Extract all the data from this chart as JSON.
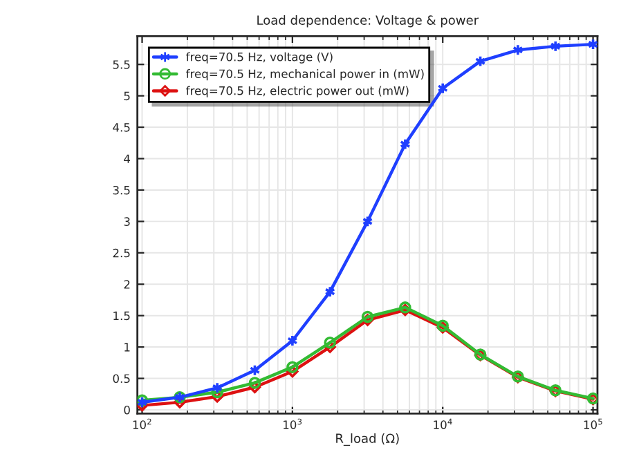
{
  "chart_data": {
    "type": "line",
    "title": "Load dependence: Voltage & power",
    "xlabel": "R_load (Ω)",
    "x": [
      100,
      178,
      316,
      562,
      1000,
      1778,
      3162,
      5623,
      10000,
      17783,
      31623,
      56234,
      100000
    ],
    "series": [
      {
        "name": "freq=70.5 Hz, voltage (V)",
        "color": "#1f3fff",
        "marker": "cross",
        "values": [
          0.12,
          0.2,
          0.35,
          0.63,
          1.1,
          1.88,
          3.0,
          4.23,
          5.12,
          5.55,
          5.73,
          5.79,
          5.82
        ]
      },
      {
        "name": "freq=70.5 Hz, mechanical power in (mW)",
        "color": "#33bb33",
        "marker": "circle",
        "values": [
          0.15,
          0.2,
          0.28,
          0.43,
          0.68,
          1.07,
          1.48,
          1.63,
          1.34,
          0.88,
          0.53,
          0.31,
          0.18
        ]
      },
      {
        "name": "freq=70.5 Hz, electric power out (mW)",
        "color": "#dd1111",
        "marker": "diamond",
        "values": [
          0.07,
          0.12,
          0.21,
          0.36,
          0.61,
          1.0,
          1.43,
          1.59,
          1.31,
          0.87,
          0.52,
          0.3,
          0.17
        ]
      }
    ],
    "log": "x",
    "xlim": [
      93,
      107000
    ],
    "xticks": [
      {
        "value": 100,
        "label": "10$^{2}$"
      },
      {
        "value": 1000,
        "label": "10$^{3}$"
      },
      {
        "value": 10000,
        "label": "10$^{4}$"
      },
      {
        "value": 100000,
        "label": "10$^{5}$"
      }
    ],
    "ylim": [
      -0.06,
      5.95
    ],
    "yticks": [
      0,
      0.5,
      1,
      1.5,
      2,
      2.5,
      3,
      3.5,
      4,
      4.5,
      5,
      5.5
    ],
    "grid": true,
    "legend": "top left",
    "line_style": "solid"
  }
}
